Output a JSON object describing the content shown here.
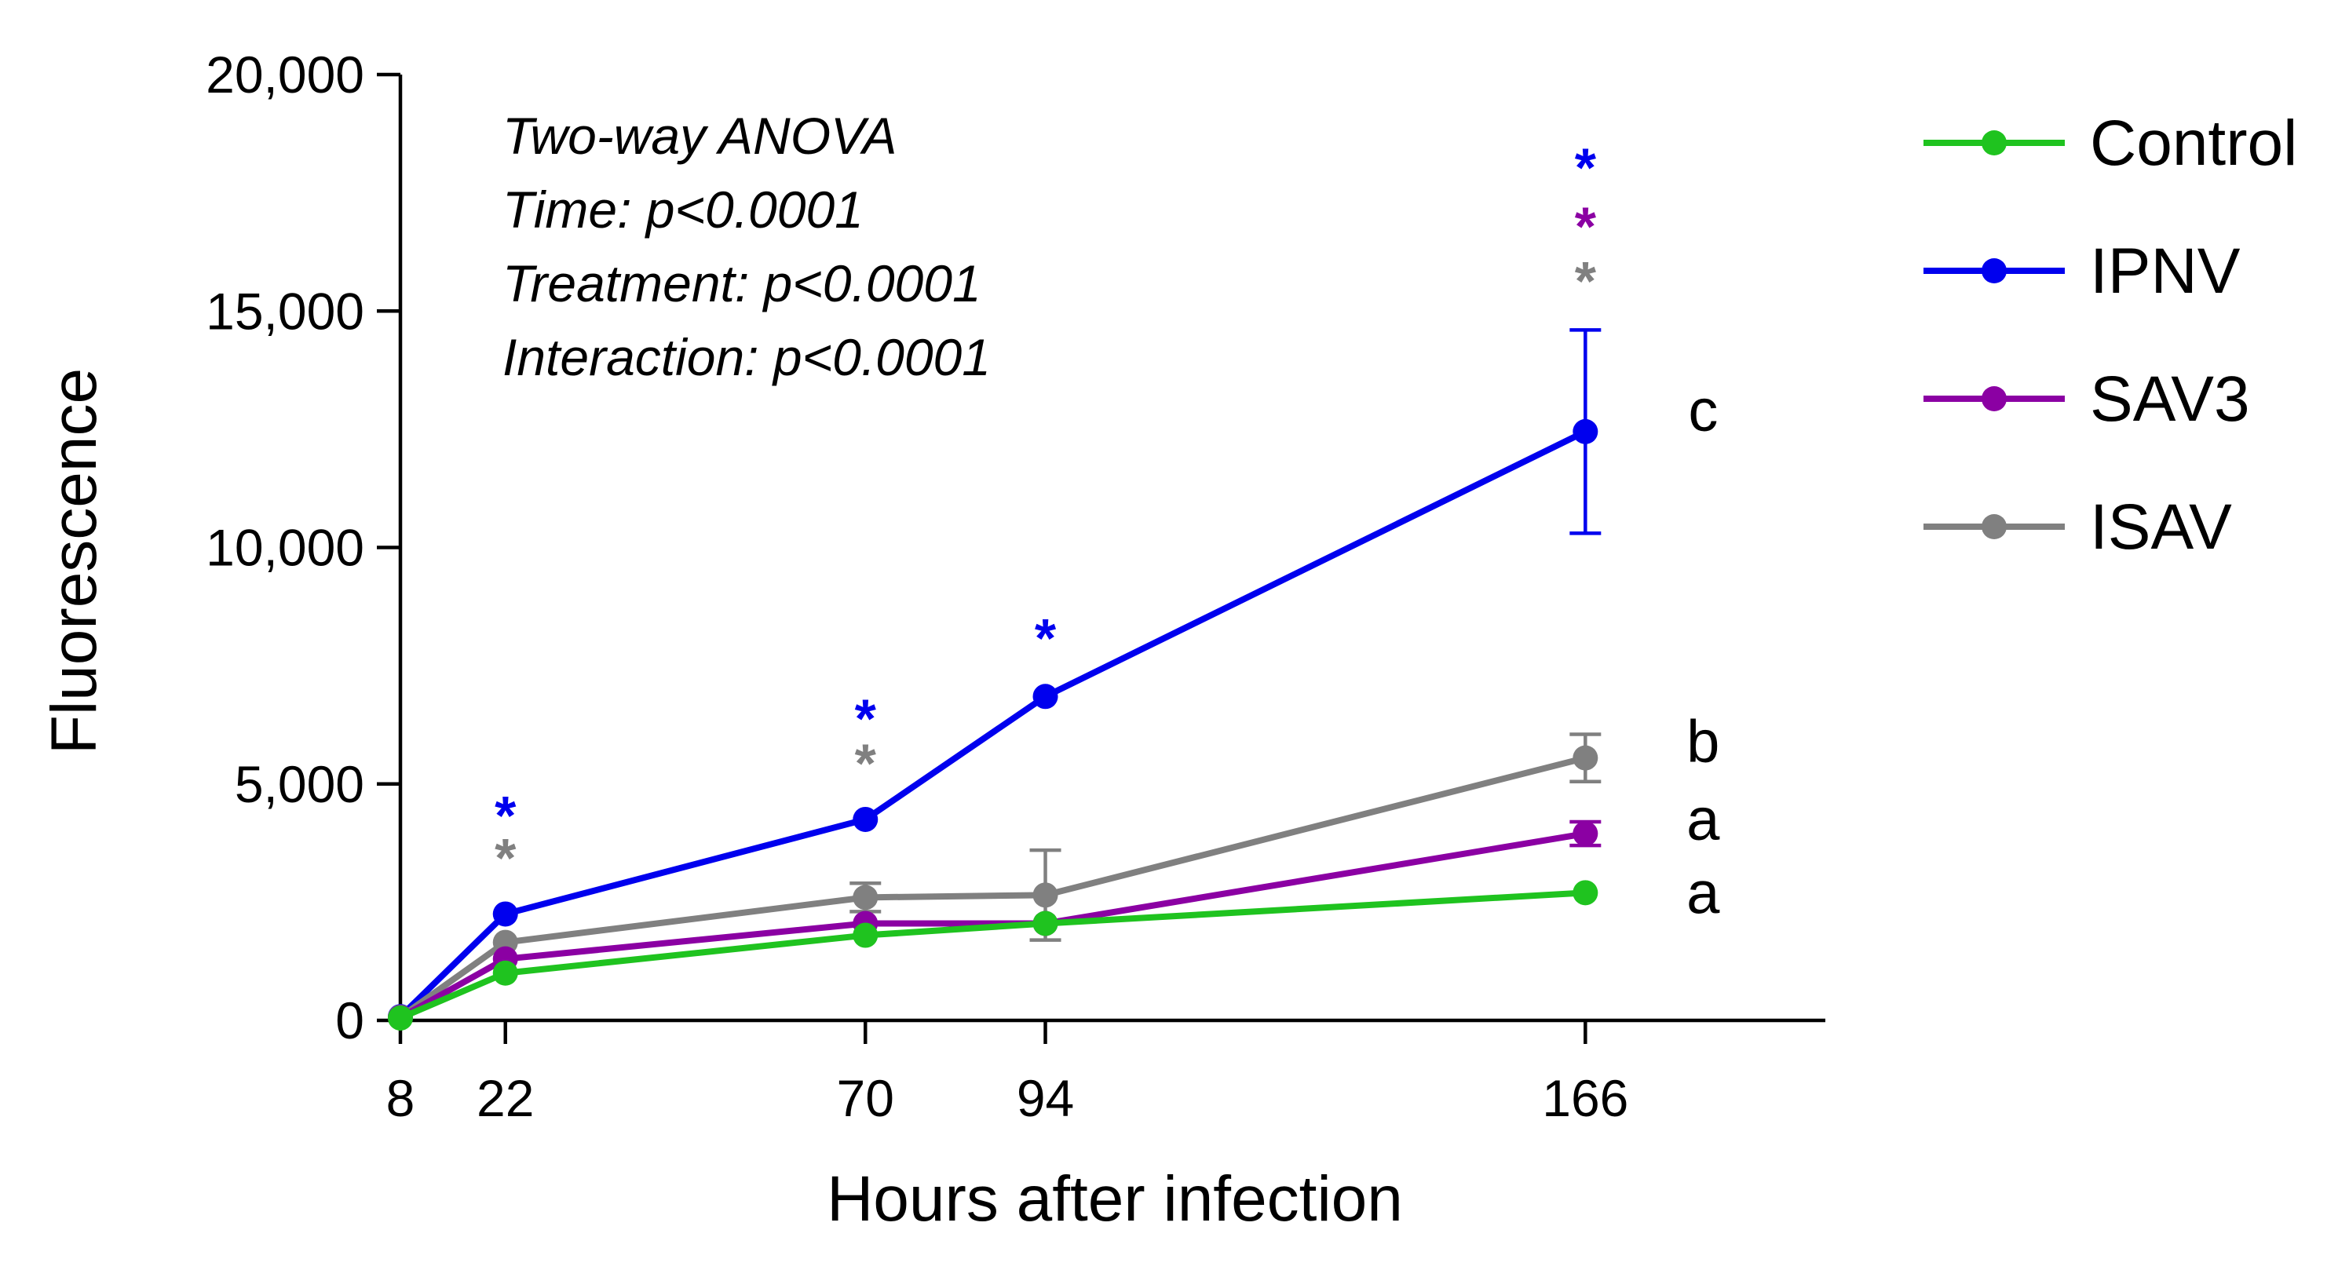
{
  "chart_data": {
    "type": "line",
    "xlabel": "Hours after infection",
    "ylabel": "Fluorescence",
    "x": [
      8,
      22,
      70,
      94,
      166
    ],
    "xticks": [
      8,
      22,
      70,
      94,
      166
    ],
    "xlim": [
      8,
      198
    ],
    "ylim": [
      0,
      20000
    ],
    "yticks": [
      0,
      5000,
      10000,
      15000,
      20000
    ],
    "ytick_labels": [
      "0",
      "5,000",
      "10,000",
      "15,000",
      "20,000"
    ],
    "grid": false,
    "legend_position": "right",
    "series": [
      {
        "name": "Control",
        "color": "#1fc31f",
        "values": [
          50,
          1000,
          1800,
          2050,
          2700
        ],
        "error": [
          0,
          0,
          0,
          0,
          0
        ]
      },
      {
        "name": "IPNV",
        "color": "#0000ee",
        "values": [
          80,
          2250,
          4250,
          6850,
          12450
        ],
        "error": [
          0,
          0,
          0,
          0,
          2150
        ]
      },
      {
        "name": "SAV3",
        "color": "#8b00a3",
        "values": [
          60,
          1300,
          2050,
          2050,
          3950
        ],
        "error": [
          0,
          0,
          0,
          0,
          250
        ]
      },
      {
        "name": "ISAV",
        "color": "#808080",
        "values": [
          70,
          1650,
          2600,
          2650,
          5550
        ],
        "error": [
          0,
          0,
          300,
          950,
          500
        ]
      }
    ],
    "annotations": {
      "anova_lines": [
        "Two-way ANOVA",
        "Time: p<0.0001",
        "Treatment: p<0.0001",
        "Interaction: p<0.0001"
      ],
      "group_letters": [
        {
          "text": "c",
          "x": 166,
          "y": 12700
        },
        {
          "text": "b",
          "x": 166,
          "y": 5700
        },
        {
          "text": "a",
          "x": 166,
          "y": 4050
        },
        {
          "text": "a",
          "x": 166,
          "y": 2500
        }
      ],
      "significance": [
        {
          "text": "*",
          "x": 22,
          "y": 4600,
          "color": "#0000ee"
        },
        {
          "text": "*",
          "x": 22,
          "y": 3700,
          "color": "#808080"
        },
        {
          "text": "*",
          "x": 70,
          "y": 6650,
          "color": "#0000ee"
        },
        {
          "text": "*",
          "x": 70,
          "y": 5700,
          "color": "#808080"
        },
        {
          "text": "*",
          "x": 94,
          "y": 8350,
          "color": "#0000ee"
        },
        {
          "text": "*",
          "x": 166,
          "y": 18300,
          "color": "#0000ee"
        },
        {
          "text": "*",
          "x": 166,
          "y": 17050,
          "color": "#8b00a3"
        },
        {
          "text": "*",
          "x": 166,
          "y": 15900,
          "color": "#808080"
        }
      ]
    }
  }
}
